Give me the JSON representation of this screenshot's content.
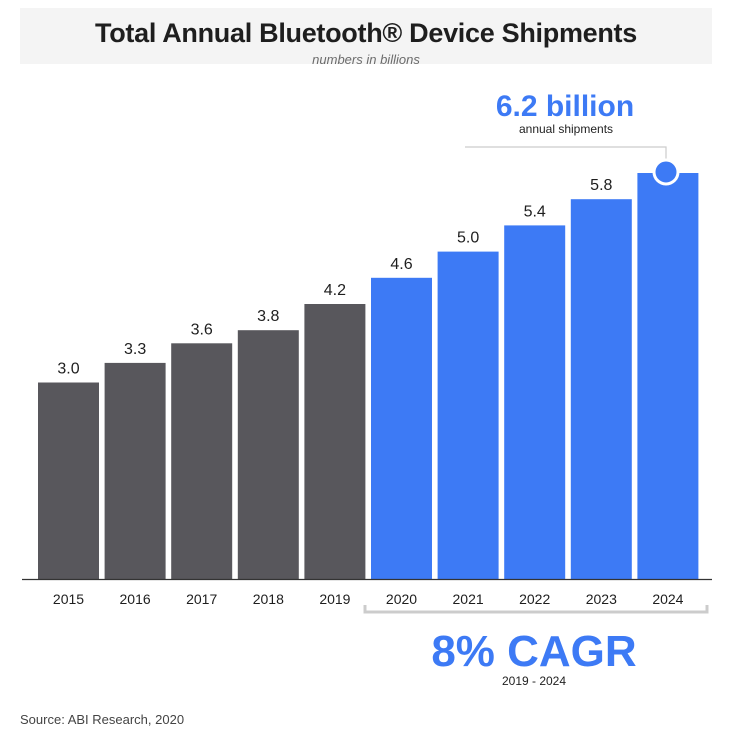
{
  "title": "Total Annual Bluetooth® Device Shipments",
  "subtitle": "numbers in billions",
  "source": "Source: ABI Research, 2020",
  "colors": {
    "historical": "#58575c",
    "forecast": "#3d7af5",
    "axis": "#333333",
    "bracket": "#cccccc"
  },
  "chart_data": {
    "type": "bar",
    "categories": [
      "2015",
      "2016",
      "2017",
      "2018",
      "2019",
      "2020",
      "2021",
      "2022",
      "2023",
      "2024"
    ],
    "values": [
      3.0,
      3.3,
      3.6,
      3.8,
      4.2,
      4.6,
      5.0,
      5.4,
      5.8,
      6.2
    ],
    "value_labels": [
      "3.0",
      "3.3",
      "3.6",
      "3.8",
      "4.2",
      "4.6",
      "5.0",
      "5.4",
      "5.8",
      ""
    ],
    "ylim": [
      0,
      6.2
    ],
    "title": "Total Annual Bluetooth® Device Shipments",
    "subtitle": "numbers in billions",
    "xlabel": "",
    "ylabel": "",
    "forecast_start_index": 5,
    "annotations": {
      "peak": {
        "value": "6.2 billion",
        "label": "annual shipments"
      },
      "cagr": {
        "value": "8% CAGR",
        "label": "2019 - 2024"
      }
    }
  }
}
